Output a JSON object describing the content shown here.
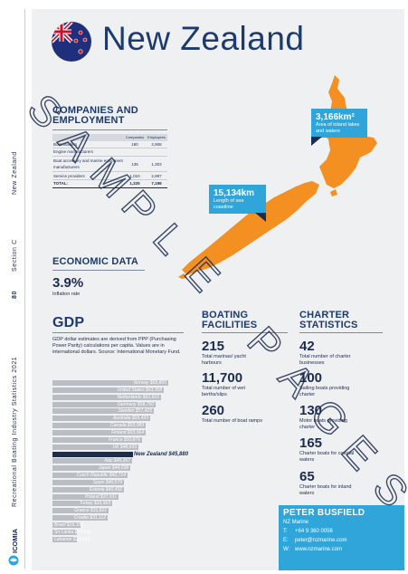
{
  "title": "New Zealand",
  "sidebar": {
    "page_number": "80",
    "section": "Section C",
    "country": "New Zealand",
    "publication": "Recreational Boating Industry Statistics 2021",
    "logo_text": "ICOMIA"
  },
  "companies": {
    "heading": "COMPANIES AND EMPLOYMENT",
    "columns": [
      "",
      "Companies",
      "Employees"
    ],
    "rows": [
      {
        "label": "Boat builders",
        "companies": "180",
        "employees": "2,908"
      },
      {
        "label": "Engine manufacturers",
        "companies": "",
        "employees": ""
      },
      {
        "label": "Boat accessory and marine equipment manufacturers",
        "companies": "135",
        "employees": "1,303"
      },
      {
        "label": "Service providers",
        "companies": "1,010",
        "employees": "2,987"
      },
      {
        "label": "TOTAL:",
        "companies": "1,325",
        "employees": "7,198"
      }
    ]
  },
  "economic": {
    "heading": "ECONOMIC DATA",
    "inflation_value": "3.9%",
    "inflation_label": "Inflation rate"
  },
  "gdp": {
    "heading": "GDP",
    "note": "GDP dollar estimates are derived from PPP (Purchasing Power Parity) calculations per capita. Values are in international dollars. Source: International Monetary Fund."
  },
  "chart_data": {
    "type": "bar",
    "orientation": "horizontal",
    "categories": [
      "Norway",
      "United States",
      "Netherlands",
      "Germany",
      "Sweden",
      "Australia",
      "Canada",
      "Finland",
      "France",
      "UK",
      "New Zealand",
      "Italy",
      "Japan",
      "Czech Republic",
      "Spain",
      "Estonia",
      "Poland",
      "Turkey",
      "Greece",
      "Croatia",
      "Brazil",
      "Sri Lanka",
      "Lebanon"
    ],
    "labels": [
      "Norway $65,800",
      "United States $63,358",
      "Netherlands $61,816",
      "Germany $58,750",
      "Sweden $57,425",
      "Australia $55,493",
      "Canada $53,089",
      "Finland $53,064",
      "France $50,876",
      "UK $48,693",
      "New Zealand $45,880",
      "Italy $45,267",
      "Japan $44,038",
      "Czech Republic $42,714",
      "Spain $40,579",
      "Estonia $40,452",
      "Poland $37,531",
      "Turkey $33,963",
      "Greece $31,821",
      "Croatia $31,112",
      "Brazil $16,100",
      "Sri Lanka $14,032",
      "Lebanon $13,623"
    ],
    "values": [
      65800,
      63358,
      61816,
      58750,
      57425,
      55493,
      53089,
      53064,
      50876,
      48693,
      45880,
      45267,
      44038,
      42714,
      40579,
      40452,
      37531,
      33963,
      31821,
      31112,
      16100,
      14032,
      13623
    ],
    "highlight": "New Zealand",
    "colors": {
      "bar": "#b9bdc4",
      "highlight": "#1d2b4d"
    }
  },
  "boating": {
    "heading": "BOATING FACILITIES",
    "stats": [
      {
        "value": "215",
        "label": "Total marinas/ yacht harbours"
      },
      {
        "value": "11,700",
        "label": "Total number of wet berths/slips"
      },
      {
        "value": "260",
        "label": "Total number of boat ramps"
      }
    ]
  },
  "charter": {
    "heading": "CHARTER STATISTICS",
    "stats": [
      {
        "value": "42",
        "label": "Total number of charter businesses"
      },
      {
        "value": "100",
        "label": "Sailing boats providing charter"
      },
      {
        "value": "130",
        "label": "Motor boats providing charter"
      },
      {
        "value": "165",
        "label": "Charter boats for coastal waters"
      },
      {
        "value": "65",
        "label": "Charter boats for inland waters"
      }
    ]
  },
  "callouts": {
    "lakes_value": "3,166km²",
    "lakes_label": "Area of inland lakes and waters",
    "coast_value": "15,134km",
    "coast_label": "Length of sea coastline"
  },
  "contact": {
    "name": "PETER BUSFIELD",
    "org": "NZ Marine",
    "phone_key": "T:",
    "phone": "+64 9 360 0056",
    "email_key": "E:",
    "email": "peter@nzmarine.com",
    "web_key": "W:",
    "web": "www.nzmarine.com"
  },
  "watermark": "SAMPLE PAGES",
  "colors": {
    "navy": "#1d2b4d",
    "title_blue": "#1d3a6e",
    "accent_blue": "#2fa5d9",
    "map_orange": "#f39021",
    "panel_grey": "#eef0f2"
  }
}
